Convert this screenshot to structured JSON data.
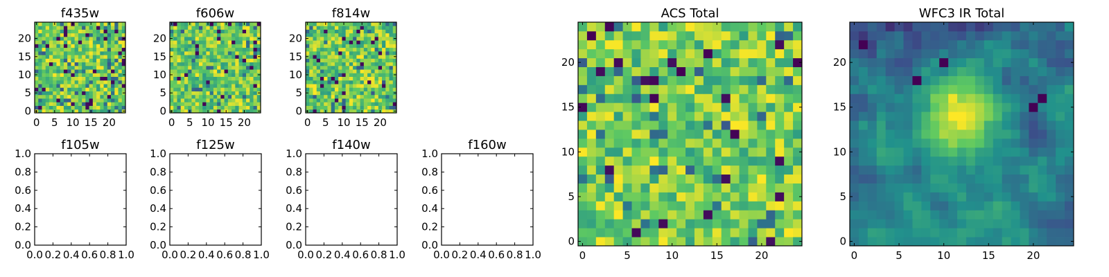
{
  "colors": {
    "background": "#ffffff",
    "axes_edge": "#000000",
    "colormap": "viridis",
    "viridis_stops": [
      "#440154",
      "#3b528b",
      "#21918c",
      "#5ec962",
      "#fde725"
    ]
  },
  "chart_data": [
    {
      "id": "f435w",
      "type": "heatmap",
      "title": "f435w",
      "grid_size": 25,
      "origin": "lower",
      "seed": 435,
      "xlim": [
        -0.5,
        24.5
      ],
      "ylim": [
        -0.5,
        24.5
      ],
      "xticks": [
        0,
        5,
        10,
        15,
        20
      ],
      "yticks": [
        0,
        5,
        10,
        15,
        20
      ],
      "xtick_labels": [
        "0",
        "5",
        "10",
        "15",
        "20"
      ],
      "ytick_labels": [
        "0",
        "5",
        "10",
        "15",
        "20"
      ],
      "pattern": "noise"
    },
    {
      "id": "f606w",
      "type": "heatmap",
      "title": "f606w",
      "grid_size": 25,
      "origin": "lower",
      "seed": 606,
      "xlim": [
        -0.5,
        24.5
      ],
      "ylim": [
        -0.5,
        24.5
      ],
      "xticks": [
        0,
        5,
        10,
        15,
        20
      ],
      "yticks": [
        0,
        5,
        10,
        15,
        20
      ],
      "xtick_labels": [
        "0",
        "5",
        "10",
        "15",
        "20"
      ],
      "ytick_labels": [
        "0",
        "5",
        "10",
        "15",
        "20"
      ],
      "pattern": "noise"
    },
    {
      "id": "f814w",
      "type": "heatmap",
      "title": "f814w",
      "grid_size": 25,
      "origin": "lower",
      "seed": 814,
      "xlim": [
        -0.5,
        24.5
      ],
      "ylim": [
        -0.5,
        24.5
      ],
      "xticks": [
        0,
        5,
        10,
        15,
        20
      ],
      "yticks": [
        0,
        5,
        10,
        15,
        20
      ],
      "xtick_labels": [
        "0",
        "5",
        "10",
        "15",
        "20"
      ],
      "ytick_labels": [
        "0",
        "5",
        "10",
        "15",
        "20"
      ],
      "pattern": "noise"
    },
    {
      "id": "f105w",
      "type": "empty",
      "title": "f105w",
      "xlim": [
        0,
        1
      ],
      "ylim": [
        0,
        1
      ],
      "xticks": [
        0,
        0.2,
        0.4,
        0.6,
        0.8,
        1
      ],
      "yticks": [
        0,
        0.2,
        0.4,
        0.6,
        0.8,
        1
      ],
      "xtick_labels": [
        "0.0",
        "0.2",
        "0.4",
        "0.6",
        "0.8",
        "1.0"
      ],
      "ytick_labels": [
        "0.0",
        "0.2",
        "0.4",
        "0.6",
        "0.8",
        "1.0"
      ]
    },
    {
      "id": "f125w",
      "type": "empty",
      "title": "f125w",
      "xlim": [
        0,
        1
      ],
      "ylim": [
        0,
        1
      ],
      "xticks": [
        0,
        0.2,
        0.4,
        0.6,
        0.8,
        1
      ],
      "yticks": [
        0,
        0.2,
        0.4,
        0.6,
        0.8,
        1
      ],
      "xtick_labels": [
        "0.0",
        "0.2",
        "0.4",
        "0.6",
        "0.8",
        "1.0"
      ],
      "ytick_labels": [
        "0.0",
        "0.2",
        "0.4",
        "0.6",
        "0.8",
        "1.0"
      ]
    },
    {
      "id": "f140w",
      "type": "empty",
      "title": "f140w",
      "xlim": [
        0,
        1
      ],
      "ylim": [
        0,
        1
      ],
      "xticks": [
        0,
        0.2,
        0.4,
        0.6,
        0.8,
        1
      ],
      "yticks": [
        0,
        0.2,
        0.4,
        0.6,
        0.8,
        1
      ],
      "xtick_labels": [
        "0.0",
        "0.2",
        "0.4",
        "0.6",
        "0.8",
        "1.0"
      ],
      "ytick_labels": [
        "0.0",
        "0.2",
        "0.4",
        "0.6",
        "0.8",
        "1.0"
      ]
    },
    {
      "id": "f160w",
      "type": "empty",
      "title": "f160w",
      "xlim": [
        0,
        1
      ],
      "ylim": [
        0,
        1
      ],
      "xticks": [
        0,
        0.2,
        0.4,
        0.6,
        0.8,
        1
      ],
      "yticks": [
        0,
        0.2,
        0.4,
        0.6,
        0.8,
        1
      ],
      "xtick_labels": [
        "0.0",
        "0.2",
        "0.4",
        "0.6",
        "0.8",
        "1.0"
      ],
      "ytick_labels": [
        "0.0",
        "0.2",
        "0.4",
        "0.6",
        "0.8",
        "1.0"
      ]
    },
    {
      "id": "acs-total",
      "type": "heatmap",
      "title": "ACS Total",
      "grid_size": 25,
      "origin": "lower",
      "seed": 1001,
      "xlim": [
        -0.5,
        24.5
      ],
      "ylim": [
        -0.5,
        24.5
      ],
      "xticks": [
        0,
        5,
        10,
        15,
        20
      ],
      "yticks": [
        0,
        5,
        10,
        15,
        20
      ],
      "xtick_labels": [
        "0",
        "5",
        "10",
        "15",
        "20"
      ],
      "ytick_labels": [
        "0",
        "5",
        "10",
        "15",
        "20"
      ],
      "pattern": "noise"
    },
    {
      "id": "wfc3-ir-total",
      "type": "heatmap",
      "title": "WFC3 IR Total",
      "grid_size": 25,
      "origin": "lower",
      "seed": 2002,
      "xlim": [
        -0.5,
        24.5
      ],
      "ylim": [
        -0.5,
        24.5
      ],
      "xticks": [
        0,
        5,
        10,
        15,
        20
      ],
      "yticks": [
        0,
        5,
        10,
        15,
        20
      ],
      "xtick_labels": [
        "0",
        "5",
        "10",
        "15",
        "20"
      ],
      "ytick_labels": [
        "0",
        "5",
        "10",
        "15",
        "20"
      ],
      "pattern": "smooth-source",
      "source_center": [
        12,
        14
      ],
      "source_sigma": 3.0,
      "dark_blobs": [
        [
          20,
          15
        ],
        [
          21,
          16
        ],
        [
          7,
          18
        ],
        [
          10,
          20
        ],
        [
          1,
          22
        ]
      ]
    }
  ]
}
